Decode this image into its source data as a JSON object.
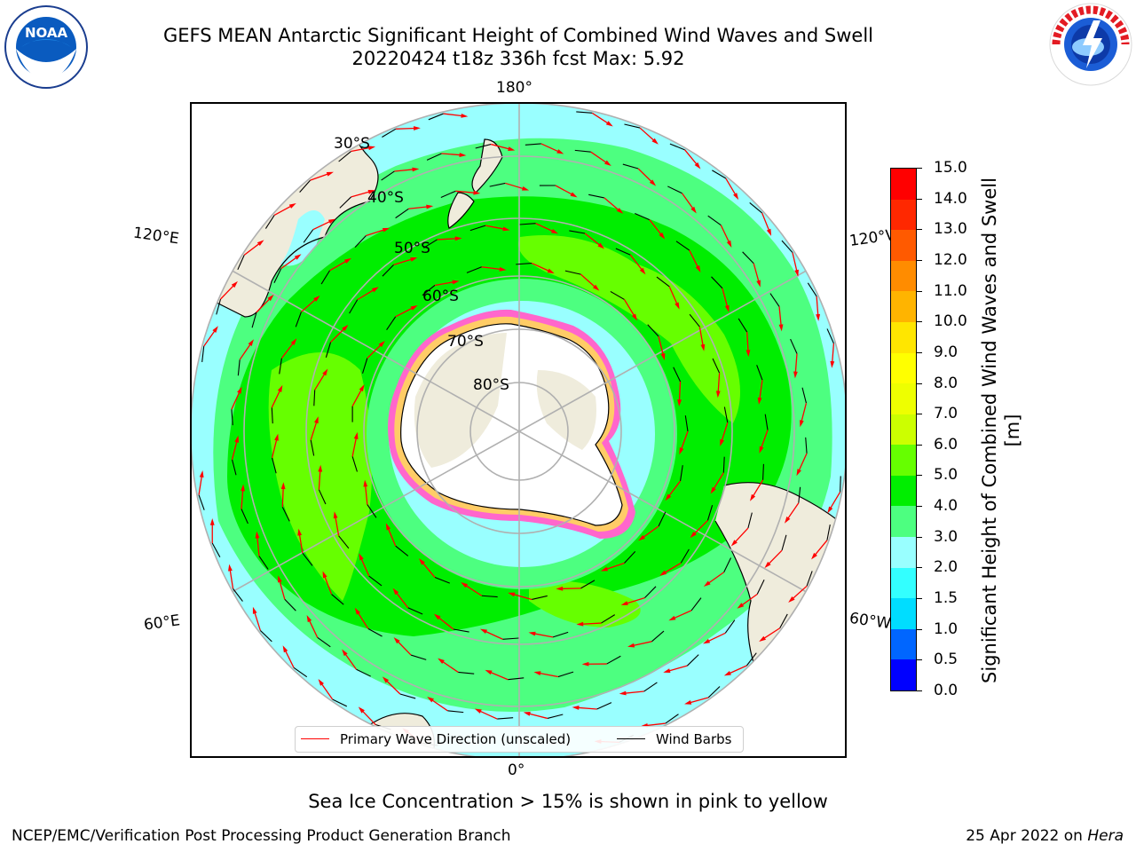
{
  "header": {
    "title_line1": "GEFS MEAN Antarctic Significant Height of Combined Wind Waves and Swell",
    "title_line2": "20220424 t18z 336h fcst   Max: 5.92"
  },
  "logos": {
    "left": "noaa-logo",
    "right": "nws-logo"
  },
  "map": {
    "longitude_labels": {
      "top": "180°",
      "upper_left": "120°E",
      "upper_right": "120°W",
      "lower_left": "60°E",
      "lower_right": "60°W",
      "bottom": "0°"
    },
    "latitude_labels": [
      "30°S",
      "40°S",
      "50°S",
      "60°S",
      "70°S",
      "80°S"
    ],
    "land_color": "#efecdc",
    "ice_sheet_color": "#ffffff",
    "sea_ice_colors": [
      "#ff66cc",
      "#ff99cc",
      "#ffcc66",
      "#ffff66"
    ],
    "arrow_color": "#ff0000",
    "barb_color": "#000000"
  },
  "legend": {
    "entries": [
      {
        "label": "Primary Wave Direction (unscaled)",
        "color": "#ff0000"
      },
      {
        "label": "Wind Barbs",
        "color": "#000000"
      }
    ]
  },
  "colorbar": {
    "label": "Significant Height of Combined Wind Waves and Swell [m]",
    "ticks": [
      "0.0",
      "0.5",
      "1.0",
      "1.5",
      "2.0",
      "3.0",
      "4.0",
      "5.0",
      "6.0",
      "7.0",
      "8.0",
      "9.0",
      "10.0",
      "11.0",
      "12.0",
      "13.0",
      "14.0",
      "15.0"
    ],
    "colors": [
      "#0000ff",
      "#0066ff",
      "#00ddff",
      "#33ffff",
      "#99ffff",
      "#4dff80",
      "#00ee00",
      "#66ff00",
      "#ccff00",
      "#eeff00",
      "#ffff00",
      "#ffe600",
      "#ffb400",
      "#ff8c00",
      "#ff5a00",
      "#ff2800",
      "#ff0000"
    ]
  },
  "footnote": "Sea Ice Concentration > 15% is shown in pink to yellow",
  "footer": {
    "left": "NCEP/EMC/Verification Post Processing Product Generation Branch",
    "right_prefix": "25 Apr 2022 on ",
    "right_italic": "Hera"
  }
}
